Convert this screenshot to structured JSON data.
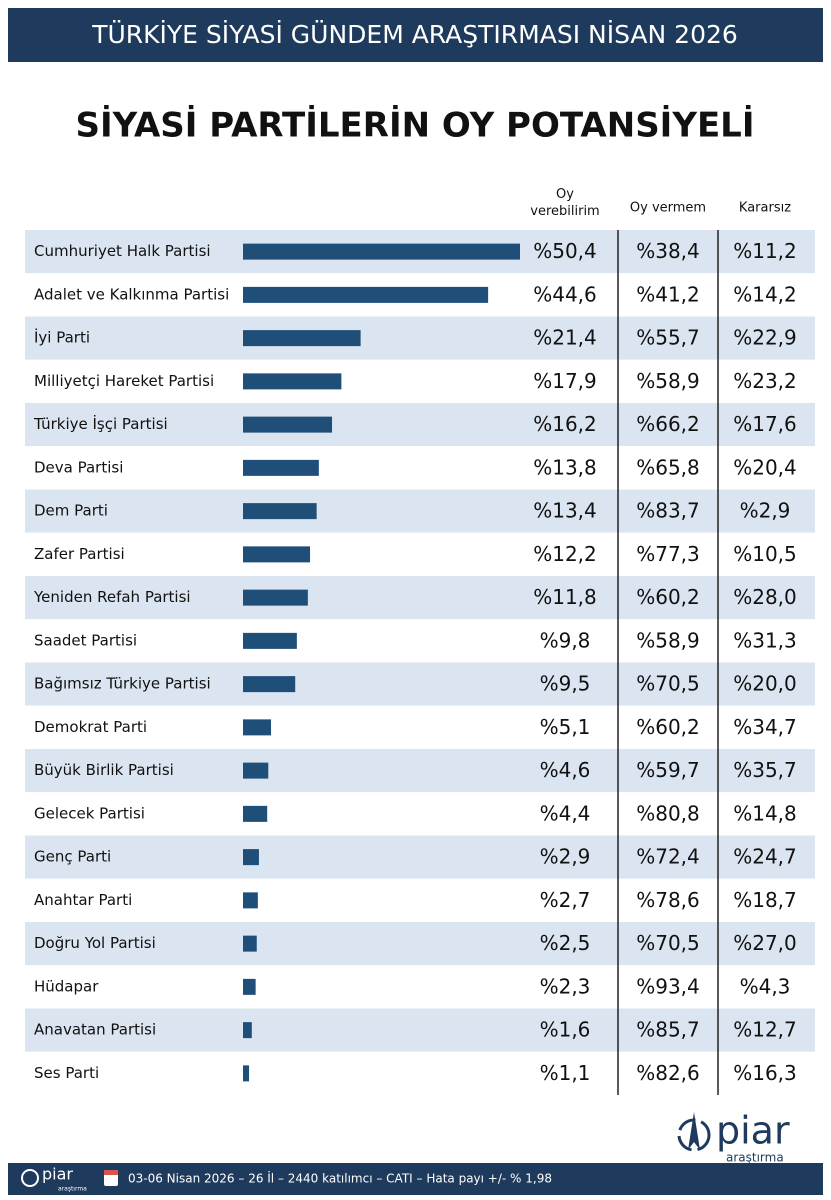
{
  "header": {
    "title": "TÜRKİYE SİYASİ GÜNDEM ARAŞTIRMASI NİSAN 2026"
  },
  "chart_data": {
    "type": "bar",
    "orientation": "horizontal",
    "title": "SİYASİ PARTİLERİN OY POTANSİYELİ",
    "categories": [
      "Cumhuriyet Halk Partisi",
      "Adalet ve Kalkınma Partisi",
      "İyi Parti",
      "Milliyetçi Hareket Partisi",
      "Türkiye İşçi Partisi",
      "Deva Partisi",
      "Dem Parti",
      "Zafer Partisi",
      "Yeniden Refah Partisi",
      "Saadet Partisi",
      "Bağımsız Türkiye Partisi",
      "Demokrat Parti",
      "Büyük Birlik Partisi",
      "Gelecek Partisi",
      "Genç Parti",
      "Anahtar Parti",
      "Doğru Yol Partisi",
      "Hüdapar",
      "Anavatan Partisi",
      "Ses Parti"
    ],
    "series": [
      {
        "name": "Oy verebilirim",
        "color": "#1f4e79",
        "values": [
          50.4,
          44.6,
          21.4,
          17.9,
          16.2,
          13.8,
          13.4,
          12.2,
          11.8,
          9.8,
          9.5,
          5.1,
          4.6,
          4.4,
          2.9,
          2.7,
          2.5,
          2.3,
          1.6,
          1.1
        ],
        "value_labels": [
          "%50,4",
          "%44,6",
          "%21,4",
          "%17,9",
          "%16,2",
          "%13,8",
          "%13,4",
          "%12,2",
          "%11,8",
          "%9,8",
          "%9,5",
          "%5,1",
          "%4,6",
          "%4,4",
          "%2,9",
          "%2,7",
          "%2,5",
          "%2,3",
          "%1,6",
          "%1,1"
        ]
      },
      {
        "name": "Oy vermem",
        "values": [
          38.4,
          41.2,
          55.7,
          58.9,
          66.2,
          65.8,
          83.7,
          77.3,
          60.2,
          58.9,
          70.5,
          60.2,
          59.7,
          80.8,
          72.4,
          78.6,
          70.5,
          93.4,
          85.7,
          82.6
        ],
        "value_labels": [
          "%38,4",
          "%41,2",
          "%55,7",
          "%58,9",
          "%66,2",
          "%65,8",
          "%83,7",
          "%77,3",
          "%60,2",
          "%58,9",
          "%70,5",
          "%60,2",
          "%59,7",
          "%80,8",
          "%72,4",
          "%78,6",
          "%70,5",
          "%93,4",
          "%85,7",
          "%82,6"
        ]
      },
      {
        "name": "Kararsız",
        "values": [
          11.2,
          14.2,
          22.9,
          23.2,
          17.6,
          20.4,
          2.9,
          10.5,
          28.0,
          31.3,
          20.0,
          34.7,
          35.7,
          14.8,
          24.7,
          18.7,
          27.0,
          4.3,
          12.7,
          16.3
        ],
        "value_labels": [
          "%11,2",
          "%14,2",
          "%22,9",
          "%23,2",
          "%17,6",
          "%20,4",
          "%2,9",
          "%10,5",
          "%28,0",
          "%31,3",
          "%20,0",
          "%34,7",
          "%35,7",
          "%14,8",
          "%24,7",
          "%18,7",
          "%27,0",
          "%4,3",
          "%12,7",
          "%16,3"
        ]
      }
    ]
  },
  "logo": {
    "name": "piar",
    "tagline": "araştırma"
  },
  "footer": {
    "text": "03-06 Nisan 2026 – 26 İl – 2440 katılımcı – CATI – Hata payı +/- % 1,98"
  }
}
